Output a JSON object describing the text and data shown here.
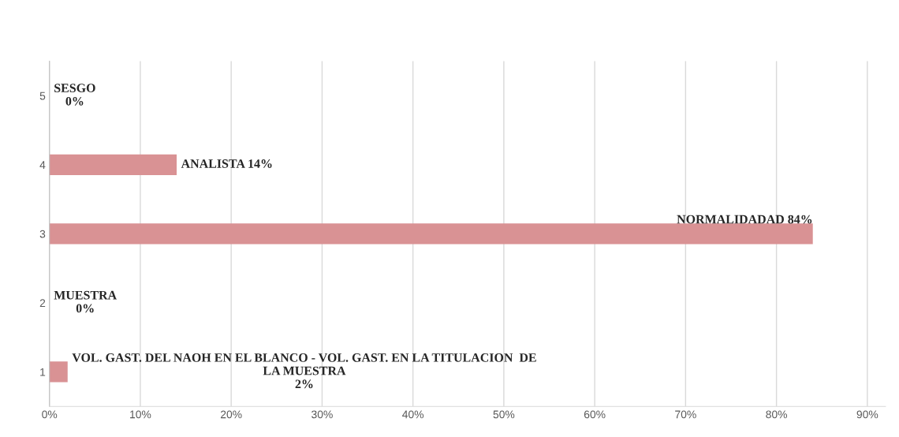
{
  "chart_data": {
    "type": "bar",
    "orientation": "horizontal",
    "categories": [
      "5",
      "4",
      "3",
      "2",
      "1"
    ],
    "values": [
      0,
      14,
      84,
      0,
      2
    ],
    "value_labels": [
      "SESGO\n0%",
      "ANALISTA 14%",
      "NORMALIDADAD 84%",
      "MUESTRA\n0%",
      "VOL. GAST. DEL NAOH EN EL BLANCO - VOL. GAST. EN LA TITULACION  DE\nLA MUESTRA\n2%"
    ],
    "color": "#d99294",
    "xlim": [
      0,
      92
    ],
    "xticks": [
      {
        "value": 0,
        "label": "0%"
      },
      {
        "value": 10,
        "label": "10%"
      },
      {
        "value": 20,
        "label": "20%"
      },
      {
        "value": 30,
        "label": "30%"
      },
      {
        "value": 40,
        "label": "40%"
      },
      {
        "value": 50,
        "label": "50%"
      },
      {
        "value": 60,
        "label": "60%"
      },
      {
        "value": 70,
        "label": "70%"
      },
      {
        "value": 80,
        "label": "80%"
      },
      {
        "value": 90,
        "label": "90%"
      }
    ],
    "grid": "x",
    "legend": false
  }
}
